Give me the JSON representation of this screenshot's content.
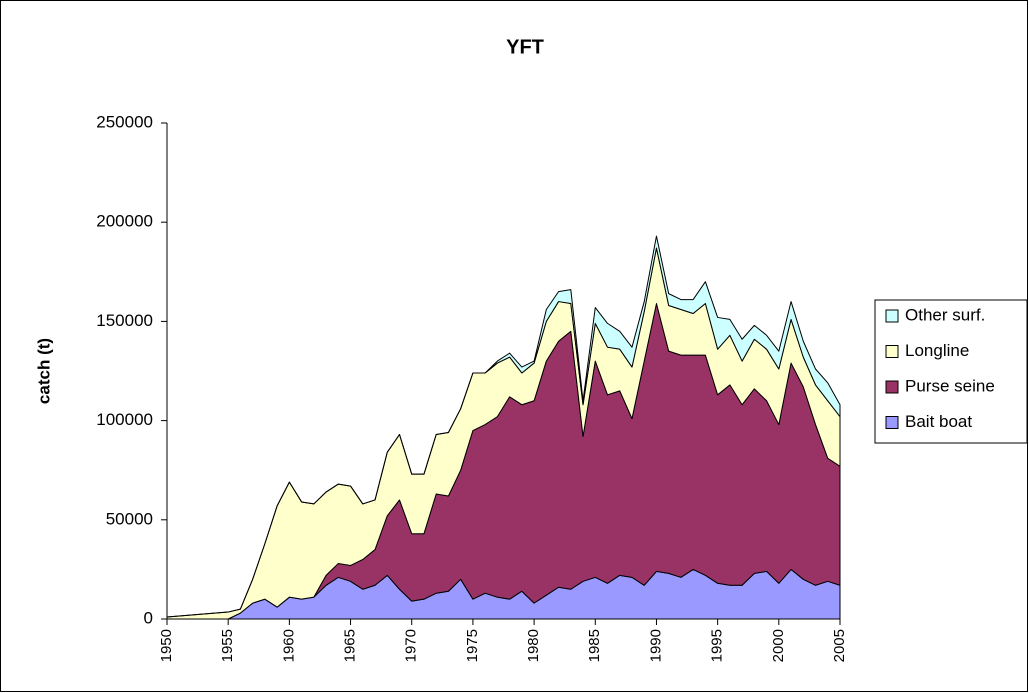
{
  "chart_data": {
    "type": "stacked-area",
    "title": "YFT",
    "y_label": "catch (t)",
    "x": [
      1950,
      1951,
      1952,
      1953,
      1954,
      1955,
      1956,
      1957,
      1958,
      1959,
      1960,
      1961,
      1962,
      1963,
      1964,
      1965,
      1966,
      1967,
      1968,
      1969,
      1970,
      1971,
      1972,
      1973,
      1974,
      1975,
      1976,
      1977,
      1978,
      1979,
      1980,
      1981,
      1982,
      1983,
      1984,
      1985,
      1986,
      1987,
      1988,
      1989,
      1990,
      1991,
      1992,
      1993,
      1994,
      1995,
      1996,
      1997,
      1998,
      1999,
      2000,
      2001,
      2002,
      2003,
      2004,
      2005
    ],
    "xlim": [
      1950,
      2005
    ],
    "xticks": [
      1950,
      1955,
      1960,
      1965,
      1970,
      1975,
      1980,
      1985,
      1990,
      1995,
      2000,
      2005
    ],
    "ylim": [
      0,
      250000
    ],
    "yticks": [
      0,
      50000,
      100000,
      150000,
      200000,
      250000
    ],
    "legend": "right",
    "series": [
      {
        "name": "Bait boat",
        "color": "#9999ff",
        "values": [
          0,
          0,
          0,
          0,
          0,
          0,
          3000,
          8000,
          10000,
          6000,
          11000,
          10000,
          11000,
          17000,
          21000,
          19000,
          15000,
          17000,
          22000,
          15000,
          9000,
          10000,
          13000,
          14000,
          20000,
          10000,
          13000,
          11000,
          10000,
          14000,
          8000,
          12000,
          16000,
          15000,
          19000,
          21000,
          18000,
          22000,
          21000,
          17000,
          24000,
          23000,
          21000,
          25000,
          22000,
          18000,
          17000,
          17000,
          23000,
          24000,
          18000,
          25000,
          20000,
          17000,
          19000,
          17000
        ]
      },
      {
        "name": "Purse seine",
        "color": "#993366",
        "values": [
          0,
          0,
          0,
          0,
          0,
          0,
          0,
          0,
          0,
          0,
          0,
          0,
          0,
          5000,
          7000,
          8000,
          15000,
          18000,
          30000,
          45000,
          34000,
          33000,
          50000,
          48000,
          55000,
          85000,
          85000,
          91000,
          102000,
          94000,
          102000,
          118000,
          124000,
          130000,
          73000,
          109000,
          95000,
          93000,
          80000,
          113000,
          135000,
          112000,
          112000,
          108000,
          111000,
          95000,
          101000,
          91000,
          93000,
          86000,
          80000,
          104000,
          97000,
          81000,
          62000,
          60000
        ]
      },
      {
        "name": "Longline",
        "color": "#ffffcc",
        "values": [
          1000,
          1500,
          2000,
          2500,
          3000,
          3500,
          2000,
          12000,
          28000,
          51000,
          58000,
          49000,
          47000,
          42000,
          40000,
          40000,
          28000,
          25000,
          32000,
          33000,
          30000,
          30000,
          30000,
          32000,
          31000,
          29000,
          26000,
          27000,
          20000,
          16000,
          19000,
          20000,
          20000,
          14000,
          16000,
          19000,
          24000,
          21000,
          26000,
          25000,
          28000,
          23000,
          23000,
          21000,
          26000,
          23000,
          25000,
          22000,
          25000,
          26000,
          28000,
          22000,
          15000,
          20000,
          29000,
          25000
        ]
      },
      {
        "name": "Other surf.",
        "color": "#ccffff",
        "values": [
          0,
          0,
          0,
          0,
          0,
          0,
          0,
          0,
          0,
          0,
          0,
          0,
          0,
          0,
          0,
          0,
          0,
          0,
          0,
          0,
          0,
          0,
          0,
          0,
          0,
          0,
          0,
          1000,
          2000,
          3000,
          1000,
          6000,
          5000,
          7000,
          2000,
          8000,
          12000,
          9000,
          10000,
          5000,
          6000,
          6000,
          5000,
          7000,
          11000,
          16000,
          8000,
          11000,
          7000,
          7000,
          9000,
          9000,
          8000,
          8000,
          9000,
          6000
        ]
      }
    ]
  }
}
